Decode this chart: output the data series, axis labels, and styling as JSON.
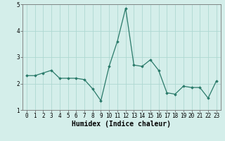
{
  "x": [
    0,
    1,
    2,
    3,
    4,
    5,
    6,
    7,
    8,
    9,
    10,
    11,
    12,
    13,
    14,
    15,
    16,
    17,
    18,
    19,
    20,
    21,
    22,
    23
  ],
  "y": [
    2.3,
    2.3,
    2.4,
    2.5,
    2.2,
    2.2,
    2.2,
    2.15,
    1.8,
    1.35,
    2.65,
    3.6,
    4.85,
    2.7,
    2.65,
    2.9,
    2.5,
    1.65,
    1.6,
    1.9,
    1.85,
    1.85,
    1.45,
    2.1
  ],
  "xlabel": "Humidex (Indice chaleur)",
  "ylim": [
    1,
    5
  ],
  "xlim": [
    -0.5,
    23.5
  ],
  "yticks": [
    1,
    2,
    3,
    4,
    5
  ],
  "xticks": [
    0,
    1,
    2,
    3,
    4,
    5,
    6,
    7,
    8,
    9,
    10,
    11,
    12,
    13,
    14,
    15,
    16,
    17,
    18,
    19,
    20,
    21,
    22,
    23
  ],
  "line_color": "#2a7a6a",
  "marker": "D",
  "marker_size": 1.8,
  "bg_color": "#d4eeea",
  "grid_color": "#aed8d2",
  "tick_fontsize": 5.5,
  "xlabel_fontsize": 7.0,
  "linewidth": 0.9
}
